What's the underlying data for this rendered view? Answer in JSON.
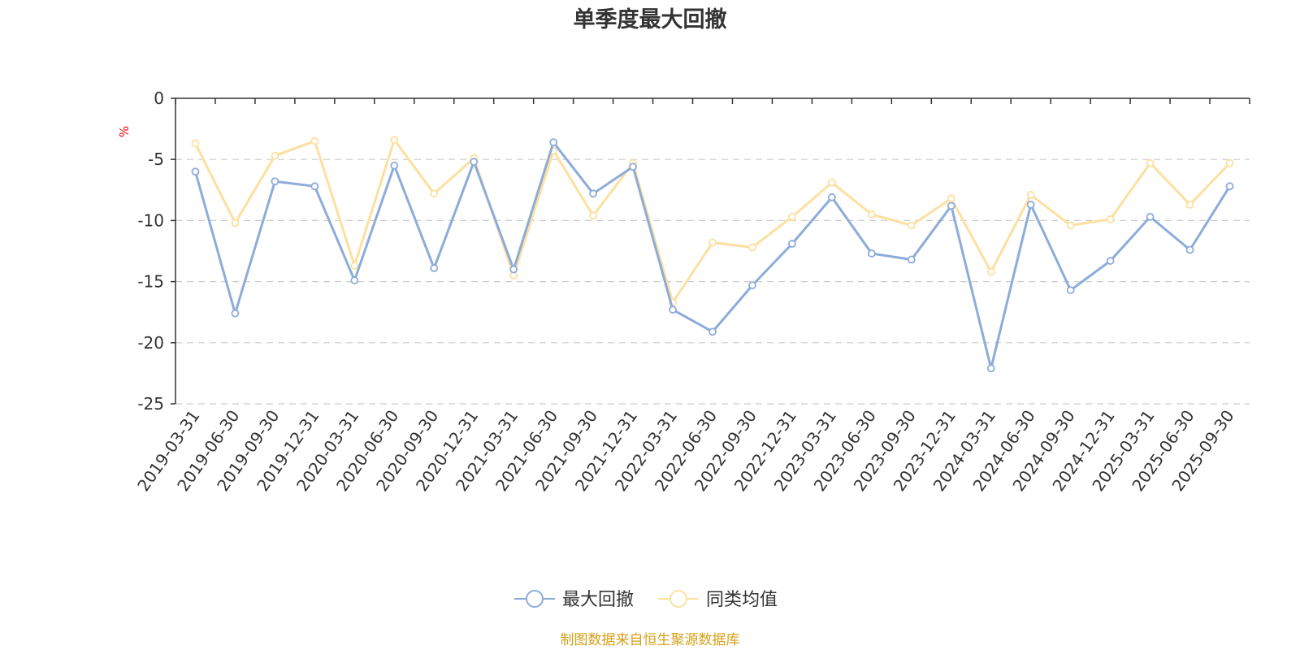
{
  "chart_data": {
    "type": "line",
    "title": "单季度最大回撤",
    "ylabel": "%",
    "ylim": [
      -25,
      0
    ],
    "yticks": [
      0,
      -5,
      -10,
      -15,
      -20,
      -25
    ],
    "grid": true,
    "legend_position": "bottom-center",
    "categories": [
      "2019-03-31",
      "2019-06-30",
      "2019-09-30",
      "2019-12-31",
      "2020-03-31",
      "2020-06-30",
      "2020-09-30",
      "2020-12-31",
      "2021-03-31",
      "2021-06-30",
      "2021-09-30",
      "2021-12-31",
      "2022-03-31",
      "2022-06-30",
      "2022-09-30",
      "2022-12-31",
      "2023-03-31",
      "2023-06-30",
      "2023-09-30",
      "2023-12-31",
      "2024-03-31",
      "2024-06-30",
      "2024-09-30",
      "2024-12-31",
      "2025-03-31",
      "2025-06-30",
      "2025-09-30"
    ],
    "series": [
      {
        "name": "最大回撤",
        "color": "#8cacd9",
        "values": [
          -6.0,
          -17.6,
          -6.8,
          -7.2,
          -14.9,
          -5.5,
          -13.9,
          -5.2,
          -14.0,
          -3.6,
          -7.8,
          -5.6,
          -17.3,
          -19.1,
          -15.3,
          -11.9,
          -8.1,
          -12.7,
          -13.2,
          -8.8,
          -22.1,
          -8.7,
          -15.7,
          -13.3,
          -9.7,
          -12.4,
          -7.2
        ]
      },
      {
        "name": "同类均值",
        "color": "#fde0a0",
        "values": [
          -3.7,
          -10.2,
          -4.7,
          -3.5,
          -13.7,
          -3.4,
          -7.8,
          -4.9,
          -14.5,
          -4.3,
          -9.6,
          -5.3,
          -16.7,
          -11.8,
          -12.2,
          -9.7,
          -6.9,
          -9.5,
          -10.4,
          -8.2,
          -14.2,
          -7.9,
          -10.4,
          -9.9,
          -5.3,
          -8.7,
          -5.3
        ]
      }
    ]
  },
  "source_note": "制图数据来自恒生聚源数据库",
  "colors": {
    "title": "#333333",
    "axis": "#333333",
    "grid": "#cccccc",
    "unit": "#ff0000",
    "source": "#d4a017"
  }
}
